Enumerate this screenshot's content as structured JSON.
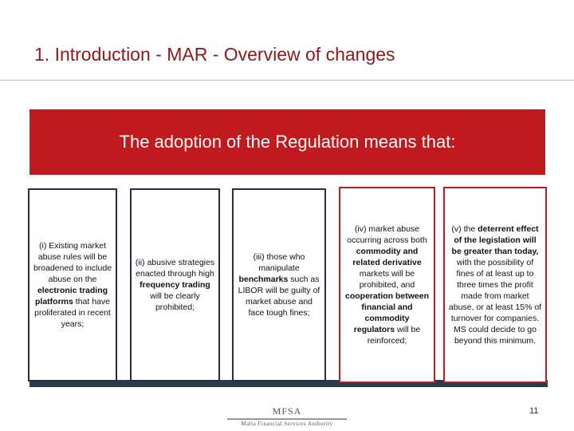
{
  "slide": {
    "title": "1. Introduction  - MAR - Overview of changes",
    "page_number": "11"
  },
  "banner": {
    "text": "The adoption of the Regulation means that:",
    "color": "#c0191e"
  },
  "cards": [
    {
      "parts": [
        {
          "text": "(i) Existing market abuse rules will be broadened to include abuse on the ",
          "bold": false
        },
        {
          "text": "electronic trading platforms",
          "bold": true
        },
        {
          "text": " that have proliferated in recent years;",
          "bold": false
        }
      ]
    },
    {
      "parts": [
        {
          "text": "(ii) abusive strategies enacted through high ",
          "bold": false
        },
        {
          "text": "frequency trading",
          "bold": true
        },
        {
          "text": " will be clearly prohibited;",
          "bold": false
        }
      ]
    },
    {
      "parts": [
        {
          "text": "(iii) those who manipulate ",
          "bold": false
        },
        {
          "text": "benchmarks",
          "bold": true
        },
        {
          "text": " such as LIBOR will be guilty of market abuse and face tough fines;",
          "bold": false
        }
      ]
    },
    {
      "parts": [
        {
          "text": "(iv) market abuse occurring across both ",
          "bold": false
        },
        {
          "text": "commodity and related derivative",
          "bold": true
        },
        {
          "text": " markets will be prohibited, and ",
          "bold": false
        },
        {
          "text": "cooperation between financial and commodity regulators",
          "bold": true
        },
        {
          "text": " will be reinforced;",
          "bold": false
        }
      ]
    },
    {
      "parts": [
        {
          "text": "(v) the ",
          "bold": false
        },
        {
          "text": "deterrent effect of the legislation will be greater than today,",
          "bold": true
        },
        {
          "text": " with the possibility of fines of at least up to three times the profit made from market abuse, or at least 15% of turnover for companies. MS could decide to go beyond this minimum.",
          "bold": false
        }
      ]
    }
  ],
  "footer": {
    "logo_top": "MFSA",
    "logo_bottom": "Malta Financial Services Authority"
  },
  "colors": {
    "title": "#8b1a1a",
    "dark_border": "#23313f",
    "red_border": "#b41f24"
  }
}
